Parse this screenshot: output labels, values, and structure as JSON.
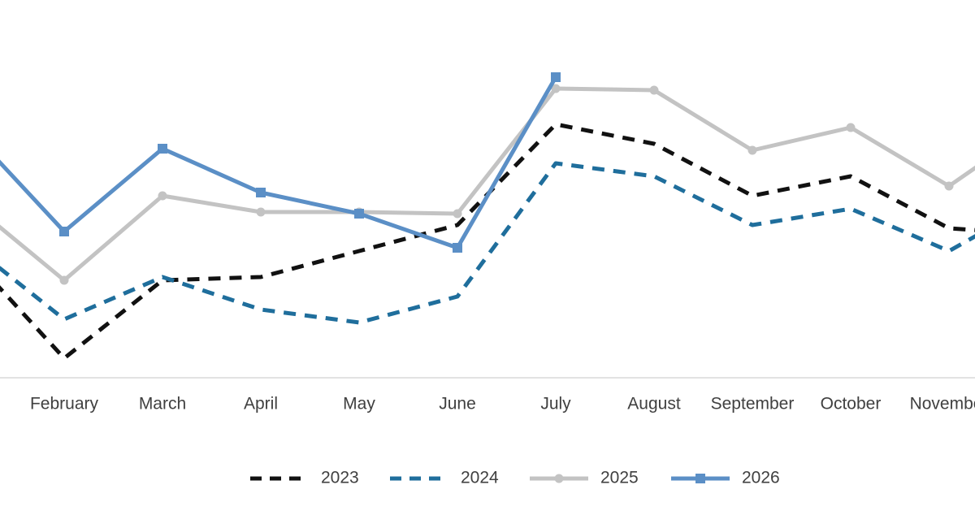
{
  "chart_data": {
    "type": "line",
    "categories": [
      null,
      "February",
      "March",
      "April",
      "May",
      "June",
      "July",
      "August",
      "September",
      "October",
      "November",
      null
    ],
    "ylim": [
      0,
      100
    ],
    "series": [
      {
        "name": "2023",
        "color": "#111111",
        "dash": true,
        "marker": null,
        "values": [
          39,
          6,
          30,
          31,
          39,
          47,
          78,
          72,
          56,
          62,
          46,
          44
        ]
      },
      {
        "name": "2024",
        "color": "#1f6e9c",
        "dash": true,
        "marker": null,
        "values": [
          42,
          18,
          31,
          21,
          17,
          25,
          66,
          62,
          47,
          52,
          39,
          56
        ]
      },
      {
        "name": "2025",
        "color": "#c3c3c3",
        "dash": false,
        "marker": "circle",
        "values": [
          55,
          30,
          56,
          51,
          51,
          50.5,
          89,
          88.5,
          70,
          77,
          59,
          80
        ]
      },
      {
        "name": "2026",
        "color": "#5b8fc6",
        "dash": false,
        "marker": "square",
        "values": [
          77.5,
          45,
          70.5,
          57,
          50.5,
          40,
          92.5,
          null,
          null,
          null,
          null,
          null
        ]
      }
    ]
  }
}
